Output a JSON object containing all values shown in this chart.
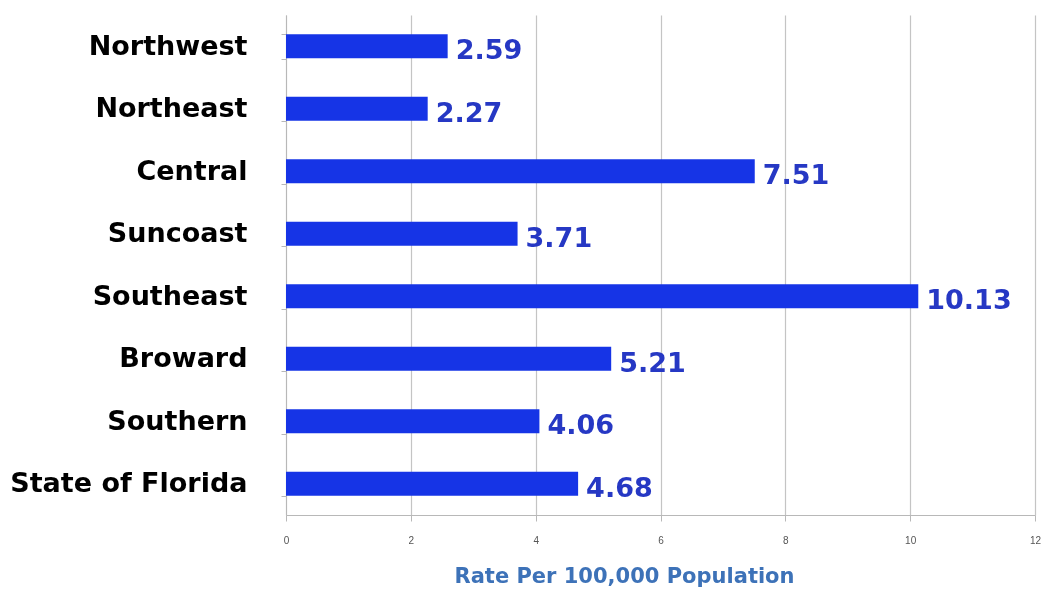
{
  "chart_data": {
    "type": "bar",
    "orientation": "horizontal",
    "categories": [
      "Northwest",
      "Northeast",
      "Central",
      "Suncoast",
      "Southeast",
      "Broward",
      "Southern",
      "State of Florida"
    ],
    "values": [
      2.59,
      2.27,
      7.51,
      3.71,
      10.13,
      5.21,
      4.06,
      4.68
    ],
    "color": "#1634e6",
    "xlim": [
      0,
      12
    ],
    "xticks": [
      0,
      2,
      4,
      6,
      8,
      10,
      12
    ],
    "xlabel": "Rate Per 100,000 Population",
    "grid": "x",
    "data_labels": true
  }
}
